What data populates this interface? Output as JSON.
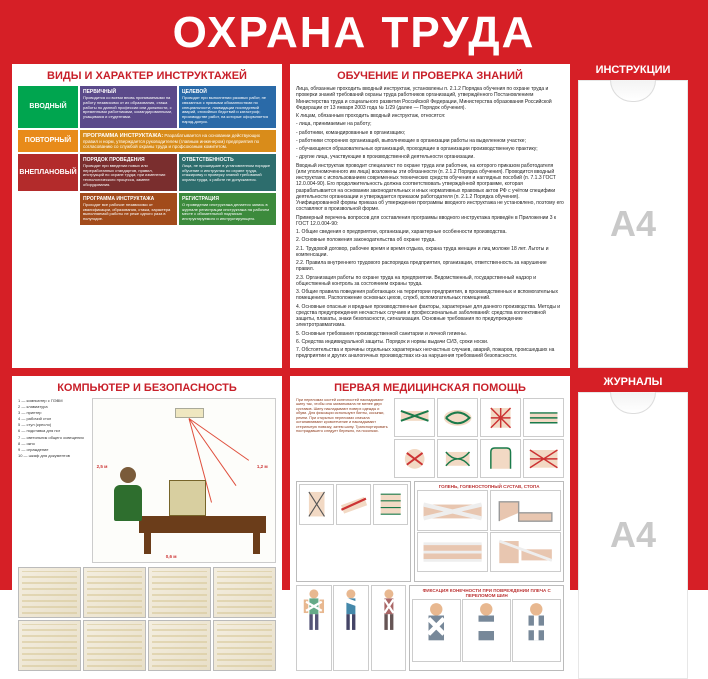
{
  "board": {
    "title": "ОХРАНА ТРУДА",
    "bg_color": "#d61f26"
  },
  "panelA": {
    "title": "ВИДЫ И ХАРАКТЕР ИНСТРУКТАЖЕЙ",
    "rows": [
      {
        "label": "ВВОДНЫЙ",
        "c1_head": "ПЕРВИЧНЫЙ",
        "c2_head": "ЦЕЛЕВОЙ",
        "c1": "Проводится со всеми вновь принимаемыми на работу независимо от их образования, стажа работы по данной профессии или должности, с временными работниками, командированными, учащимися и студентами.",
        "c2": "Проводят при выполнении разовых работ, не связанных с прямыми обязанностями по специальности; ликвидации последствий аварий, стихийных бедствий и катастроф; производстве работ, на которые оформляется наряд-допуск."
      },
      {
        "label": "ПОВТОРНЫЙ",
        "c1_head": "ПРОГРАММА ИНСТРУКТАЖА",
        "c2_head": "РЕГИСТРАЦИЯ",
        "c1": "Проходят все рабочие независимо от квалификации, образования, стажа, характера выполняемой работы не реже одного раза в полугодие.",
        "c2": "О проведении инструктажа делается запись в журнале регистрации инструктажа на рабочем месте с обязательной подписью инструктируемого и инструктирующего."
      },
      {
        "label": "ВНЕПЛАНОВЫЙ",
        "c1_head": "ПОРЯДОК ПРОВЕДЕНИЯ",
        "c2_head": "ОТВЕТСТВЕННОСТЬ",
        "c1": "Проводят при введении новых или переработанных стандартов, правил, инструкций по охране труда; при изменении технологического процесса, замене оборудования.",
        "c2": "Лица, не прошедшие в установленном порядке обучение и инструктаж по охране труда, стажировку и проверку знаний требований охраны труда, к работе не допускаются."
      }
    ],
    "prog": {
      "head": "ПРОГРАММА ИНСТРУКТАЖА:",
      "body": "Разрабатывается на основании действующих правил и норм, утверждается руководителем (главным инженером) предприятия по согласованию со службой охраны труда и профсоюзным комитетом."
    },
    "colors": {
      "labels": [
        "#00a54f",
        "#e88b1a",
        "#b32b2b"
      ],
      "c1": [
        "#5b4a8a",
        "#a24b1b",
        "#7a2e2e"
      ],
      "c2": [
        "#2a6aa8",
        "#3c8a3c",
        "#2d6d6d"
      ],
      "prog": "#d98c1a"
    }
  },
  "panelB": {
    "title": "ОБУЧЕНИЕ И ПРОВЕРКА ЗНАНИЙ",
    "paras": [
      "Лица, обязанные проходить вводный инструктаж, установлены п. 2.1.2 Порядка обучения по охране труда и проверки знаний требований охраны труда работников организаций, утверждённого Постановлением Министерства труда и социального развития Российской Федерации, Министерства образования Российской Федерации от 13 января 2003 года № 1/29 (далее — Порядок обучения).",
      "К лицам, обязанным проходить вводный инструктаж, относятся:",
      "- лица, принимаемые на работу;",
      "- работники, командированные в организацию;",
      "- работники сторонних организаций, выполняющие в организации работы на выделенном участке;",
      "- обучающиеся образовательных организаций, проходящие в организации производственную практику;",
      "- другие лица, участвующие в производственной деятельности организации.",
      "Вводный инструктаж проводит специалист по охране труда или работник, на которого приказом работодателя (или уполномоченного им лица) возложены эти обязанности (п. 2.1.2 Порядка обучения). Проводится вводный инструктаж с использованием современных технических средств обучения и наглядных пособий (п. 7.1.3 ГОСТ 12.0.004-90). Его продолжительность должна соответствовать утверждённой программе, которая разрабатывается на основании законодательных и иных нормативных правовых актов РФ с учётом специфики деятельности организации и утверждается приказом работодателя (п. 2.1.2 Порядка обучения). Унифицированной формы приказа об утверждении программы вводного инструктажа не установлено, поэтому его составляют в произвольной форме.",
      "Примерный перечень вопросов для составления программы вводного инструктажа приведён в Приложении 3 к ГОСТ 12.0.004-90:",
      "1. Общие сведения о предприятии, организации, характерные особенности производства.",
      "2. Основные положения законодательства об охране труда.",
      "2.1. Трудовой договор, рабочее время и время отдыха, охрана труда женщин и лиц моложе 18 лет. Льготы и компенсации.",
      "2.2. Правила внутреннего трудового распорядка предприятия, организации, ответственность за нарушение правил.",
      "2.3. Организация работы по охране труда на предприятии. Ведомственный, государственный надзор и общественный контроль за состоянием охраны труда.",
      "3. Общие правила поведения работающих на территории предприятия, в производственных и вспомогательных помещениях. Расположение основных цехов, служб, вспомогательных помещений.",
      "4. Основные опасные и вредные производственные факторы, характерные для данного производства. Методы и средства предупреждения несчастных случаев и профессиональных заболеваний: средства коллективной защиты, плакаты, знаки безопасности, сигнализация. Основные требования по предупреждению электротравматизма.",
      "5. Основные требования производственной санитарии и личной гигиены.",
      "6. Средства индивидуальной защиты. Порядок и нормы выдачи СИЗ, сроки носки.",
      "7. Обстоятельства и причины отдельных характерных несчастных случаев, аварий, пожаров, происшедших на предприятии и других аналогичных производствах из-за нарушения требований безопасности."
    ]
  },
  "panelC": {
    "title": "КОМПЬЮТЕР И БЕЗОПАСНОСТЬ",
    "legend": [
      "1 — компьютер с ПЭВМ",
      "2 — клавиатура",
      "3 — принтер",
      "4 — рабочий стол",
      "5 — стул (кресло)",
      "6 — подставка для ног",
      "7 — светильник общего освещения",
      "8 — окно",
      "9 — ограждение",
      "10 — шкаф для документов"
    ],
    "dims": {
      "height_label": "Высота рабочей поверхности",
      "a": "2,5 м",
      "b": "0,6 м",
      "c": "1,2 м"
    }
  },
  "panelD": {
    "title": "ПЕРВАЯ МЕДИЦИНСКАЯ ПОМОЩЬ",
    "box1_title": "ГОЛЕНЬ, ГОЛЕНОСТОПНЫЙ СУСТАВ, СТОПА",
    "box2_title": "ФИКСАЦИЯ КОНЕЧНОСТИ ПРИ ПОВРЕЖДЕНИИ ПЛЕЧА С ПЕРЕЛОМОМ ШИН"
  },
  "right": {
    "top_label": "ИНСТРУКЦИИ",
    "bottom_label": "ЖУРНАЛЫ",
    "placeholder": "А4"
  }
}
